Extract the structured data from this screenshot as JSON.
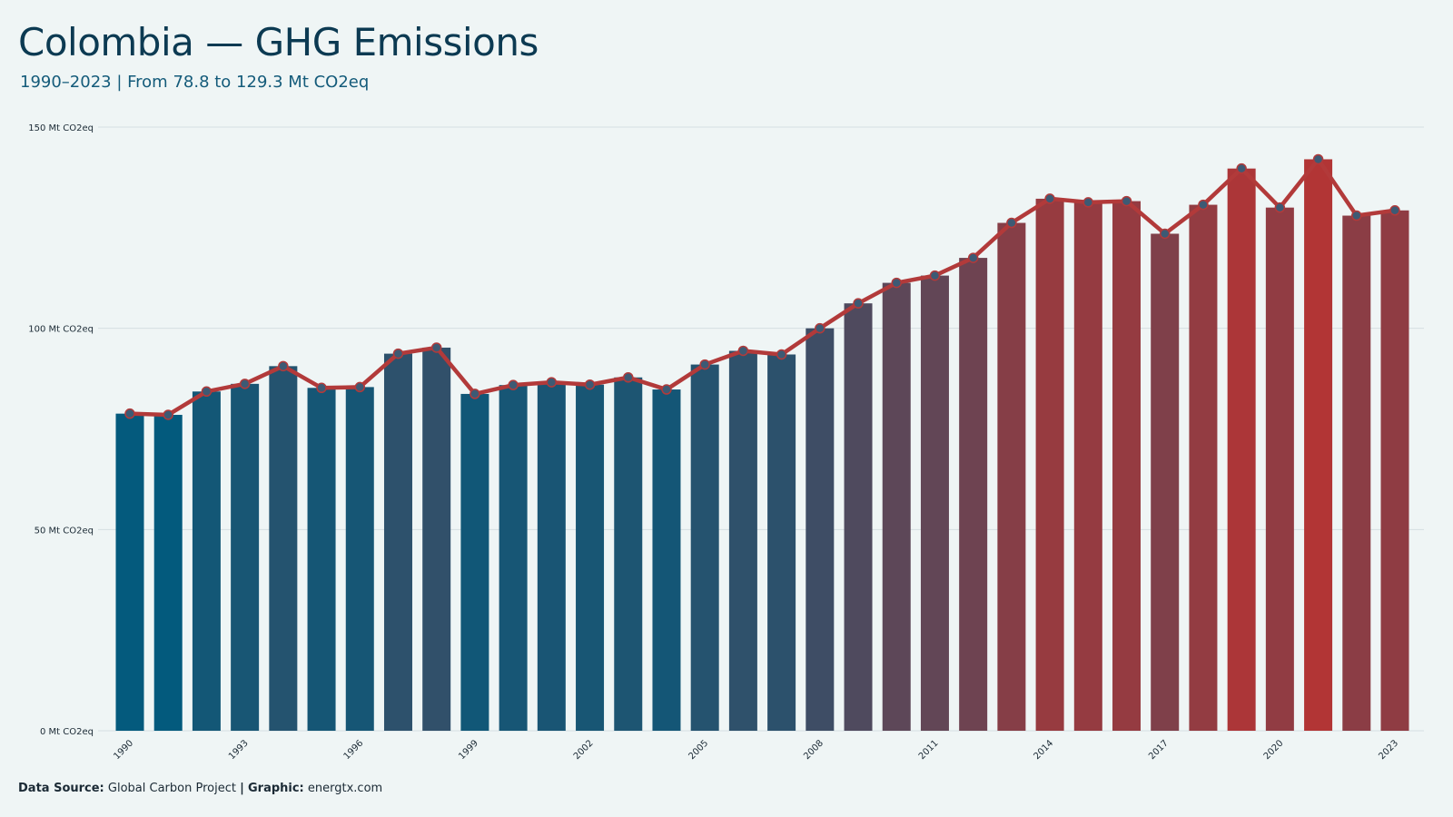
{
  "header": {
    "title": "Colombia — GHG Emissions",
    "subtitle": "1990–2023 | From 78.8 to 129.3 Mt CO2eq"
  },
  "caption": {
    "source_label": "Data Source:",
    "source_value": "Global Carbon Project",
    "separator": "|",
    "graphic_label": "Graphic:",
    "graphic_value": "energtx.com"
  },
  "colors": {
    "background": "#eff5f5",
    "low": "#035a7d",
    "high": "#b23535",
    "line": "#b23a3a",
    "marker_fill": "#3d5a74",
    "grid": "#d5dfe2"
  },
  "chart_data": {
    "type": "bar",
    "overlay": "line-with-markers",
    "categories": [
      "1990",
      "1991",
      "1992",
      "1993",
      "1994",
      "1995",
      "1996",
      "1997",
      "1998",
      "1999",
      "2000",
      "2001",
      "2002",
      "2003",
      "2004",
      "2005",
      "2006",
      "2007",
      "2008",
      "2009",
      "2010",
      "2011",
      "2012",
      "2013",
      "2014",
      "2015",
      "2016",
      "2017",
      "2018",
      "2019",
      "2020",
      "2021",
      "2022",
      "2023"
    ],
    "x_tick_labels": [
      "1990",
      "1993",
      "1996",
      "1999",
      "2002",
      "2005",
      "2008",
      "2011",
      "2014",
      "2017",
      "2020",
      "2023"
    ],
    "values": [
      78.8,
      78.5,
      84.3,
      86.2,
      90.6,
      85.2,
      85.4,
      93.7,
      95.2,
      83.7,
      85.9,
      86.6,
      86.0,
      87.8,
      84.8,
      91.0,
      94.4,
      93.5,
      100.0,
      106.2,
      111.3,
      113.1,
      117.5,
      126.2,
      132.2,
      131.3,
      131.6,
      123.5,
      130.7,
      139.7,
      130.0,
      142.0,
      128.0,
      129.3
    ],
    "ylim": [
      0,
      150
    ],
    "y_ticks": [
      0,
      50,
      100,
      150
    ],
    "y_tick_labels": [
      "0 Mt CO2eq",
      "50 Mt CO2eq",
      "100 Mt CO2eq",
      "150 Mt CO2eq"
    ],
    "xlabel": "",
    "ylabel": "",
    "grid": true,
    "legend": "none"
  }
}
